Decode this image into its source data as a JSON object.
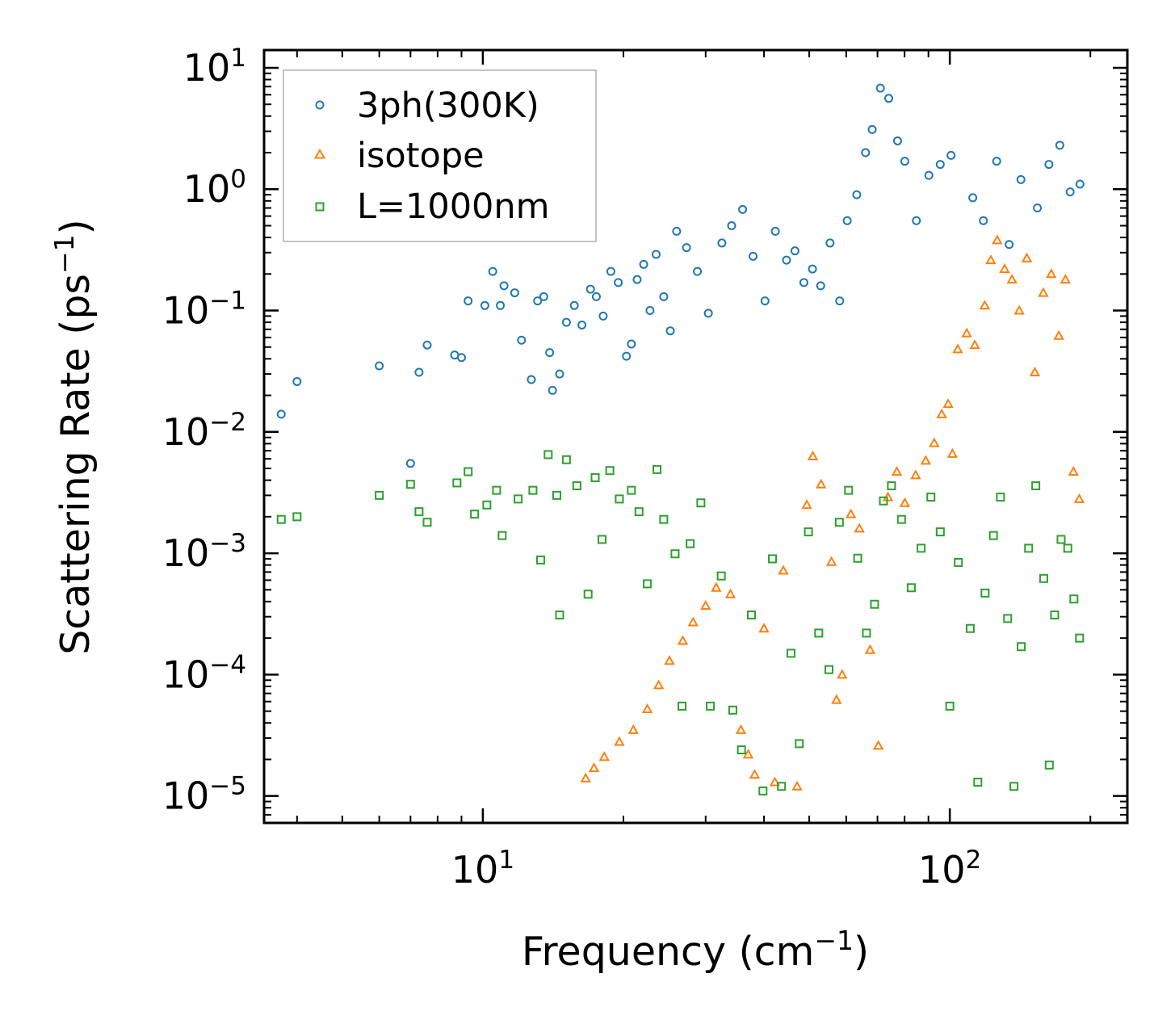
{
  "chart_data": {
    "type": "scatter",
    "title": "",
    "xlabel": "Frequency (cm",
    "xlabel_sup": "−1",
    "xlabel_end": ")",
    "ylabel": "Scattering Rate (ps",
    "ylabel_sup": "−1",
    "ylabel_end": ")",
    "xscale": "log",
    "yscale": "log",
    "xlim": [
      3.4,
      240
    ],
    "ylim": [
      6e-06,
      14
    ],
    "xticks": [
      {
        "value": 10,
        "base": "10",
        "exp": "1"
      },
      {
        "value": 100,
        "base": "10",
        "exp": "2"
      }
    ],
    "yticks": [
      {
        "value": 10,
        "base": "10",
        "exp": "1"
      },
      {
        "value": 1,
        "base": "10",
        "exp": "0"
      },
      {
        "value": 0.1,
        "base": "10",
        "exp": "−1"
      },
      {
        "value": 0.01,
        "base": "10",
        "exp": "−2"
      },
      {
        "value": 0.001,
        "base": "10",
        "exp": "−3"
      },
      {
        "value": 0.0001,
        "base": "10",
        "exp": "−4"
      },
      {
        "value": 1e-05,
        "base": "10",
        "exp": "−5"
      }
    ],
    "legend_position": "top-left",
    "series": [
      {
        "name": "3ph(300K)",
        "marker": "circle",
        "color": "#1f77b4",
        "points": [
          [
            3.7,
            0.014
          ],
          [
            4.0,
            0.026
          ],
          [
            6.0,
            0.035
          ],
          [
            7.0,
            0.0055
          ],
          [
            7.3,
            0.031
          ],
          [
            7.6,
            0.052
          ],
          [
            8.7,
            0.043
          ],
          [
            9.0,
            0.041
          ],
          [
            9.3,
            0.12
          ],
          [
            10.1,
            0.11
          ],
          [
            10.5,
            0.21
          ],
          [
            11.1,
            0.16
          ],
          [
            11.7,
            0.14
          ],
          [
            10.9,
            0.11
          ],
          [
            12.1,
            0.057
          ],
          [
            12.7,
            0.027
          ],
          [
            13.1,
            0.12
          ],
          [
            13.5,
            0.13
          ],
          [
            13.9,
            0.045
          ],
          [
            14.1,
            0.022
          ],
          [
            14.6,
            0.03
          ],
          [
            15.1,
            0.08
          ],
          [
            15.7,
            0.11
          ],
          [
            16.3,
            0.076
          ],
          [
            17.0,
            0.15
          ],
          [
            17.5,
            0.13
          ],
          [
            18.1,
            0.09
          ],
          [
            18.8,
            0.21
          ],
          [
            19.5,
            0.17
          ],
          [
            20.3,
            0.042
          ],
          [
            20.8,
            0.053
          ],
          [
            21.4,
            0.18
          ],
          [
            22.1,
            0.24
          ],
          [
            22.8,
            0.1
          ],
          [
            23.5,
            0.29
          ],
          [
            24.4,
            0.13
          ],
          [
            25.2,
            0.068
          ],
          [
            26.0,
            0.45
          ],
          [
            27.3,
            0.33
          ],
          [
            28.8,
            0.21
          ],
          [
            30.4,
            0.095
          ],
          [
            32.5,
            0.36
          ],
          [
            34.1,
            0.5
          ],
          [
            36.0,
            0.68
          ],
          [
            37.9,
            0.28
          ],
          [
            40.2,
            0.12
          ],
          [
            42.3,
            0.45
          ],
          [
            44.7,
            0.26
          ],
          [
            46.6,
            0.31
          ],
          [
            48.7,
            0.17
          ],
          [
            50.8,
            0.22
          ],
          [
            52.9,
            0.16
          ],
          [
            55.4,
            0.36
          ],
          [
            58.1,
            0.12
          ],
          [
            60.3,
            0.55
          ],
          [
            63.2,
            0.9
          ],
          [
            66.0,
            2.0
          ],
          [
            68.2,
            3.1
          ],
          [
            71.0,
            6.8
          ],
          [
            74.0,
            5.6
          ],
          [
            77.3,
            2.5
          ],
          [
            80.1,
            1.7
          ],
          [
            84.8,
            0.55
          ],
          [
            90.2,
            1.3
          ],
          [
            95.4,
            1.6
          ],
          [
            100.6,
            1.9
          ],
          [
            112.0,
            0.85
          ],
          [
            118.0,
            0.55
          ],
          [
            126.0,
            1.7
          ],
          [
            134.0,
            0.35
          ],
          [
            142.0,
            1.2
          ],
          [
            154.0,
            0.7
          ],
          [
            163.0,
            1.6
          ],
          [
            172.0,
            2.3
          ],
          [
            181.0,
            0.95
          ],
          [
            190.0,
            1.1
          ]
        ]
      },
      {
        "name": "isotope",
        "marker": "triangle",
        "color": "#ff7f0e",
        "points": [
          [
            16.6,
            1.4e-05
          ],
          [
            17.3,
            1.7e-05
          ],
          [
            18.2,
            2.1e-05
          ],
          [
            19.6,
            2.8e-05
          ],
          [
            21.0,
            3.5e-05
          ],
          [
            22.5,
            5.2e-05
          ],
          [
            23.8,
            8.2e-05
          ],
          [
            25.1,
            0.00013
          ],
          [
            26.8,
            0.00019
          ],
          [
            28.2,
            0.00027
          ],
          [
            30.0,
            0.00037
          ],
          [
            31.6,
            0.00052
          ],
          [
            33.9,
            0.00046
          ],
          [
            35.7,
            3.5e-05
          ],
          [
            37.0,
            2.2e-05
          ],
          [
            38.2,
            1.5e-05
          ],
          [
            40.0,
            0.00024
          ],
          [
            42.2,
            1.3e-05
          ],
          [
            44.0,
            0.00072
          ],
          [
            47.1,
            1.2e-05
          ],
          [
            49.4,
            0.0025
          ],
          [
            50.9,
            0.0063
          ],
          [
            53.0,
            0.0037
          ],
          [
            55.8,
            0.00085
          ],
          [
            57.2,
            6.2e-05
          ],
          [
            58.8,
            0.0001
          ],
          [
            61.4,
            0.0021
          ],
          [
            64.0,
            0.0016
          ],
          [
            67.5,
            0.00016
          ],
          [
            70.3,
            2.6e-05
          ],
          [
            73.7,
            0.0029
          ],
          [
            77.0,
            0.0047
          ],
          [
            80.1,
            0.0026
          ],
          [
            84.5,
            0.0044
          ],
          [
            88.8,
            0.0058
          ],
          [
            92.6,
            0.0081
          ],
          [
            96.1,
            0.014
          ],
          [
            99.2,
            0.017
          ],
          [
            101.3,
            0.0066
          ],
          [
            104.0,
            0.048
          ],
          [
            108.7,
            0.065
          ],
          [
            113.1,
            0.052
          ],
          [
            118.8,
            0.11
          ],
          [
            122.4,
            0.26
          ],
          [
            126.3,
            0.38
          ],
          [
            131.0,
            0.22
          ],
          [
            135.9,
            0.18
          ],
          [
            140.8,
            0.1
          ],
          [
            146.2,
            0.27
          ],
          [
            152.1,
            0.031
          ],
          [
            158.6,
            0.14
          ],
          [
            164.9,
            0.2
          ],
          [
            171.2,
            0.062
          ],
          [
            176.8,
            0.18
          ],
          [
            184.0,
            0.0047
          ],
          [
            189.3,
            0.0028
          ]
        ]
      },
      {
        "name": "L=1000nm",
        "marker": "square",
        "color": "#2ca02c",
        "points": [
          [
            3.7,
            0.0019
          ],
          [
            4.0,
            0.002
          ],
          [
            6.0,
            0.003
          ],
          [
            7.0,
            0.0037
          ],
          [
            7.3,
            0.0022
          ],
          [
            7.6,
            0.0018
          ],
          [
            8.8,
            0.0038
          ],
          [
            9.3,
            0.0047
          ],
          [
            9.6,
            0.0021
          ],
          [
            10.2,
            0.0025
          ],
          [
            10.7,
            0.0033
          ],
          [
            11.0,
            0.0014
          ],
          [
            11.9,
            0.0028
          ],
          [
            12.8,
            0.0033
          ],
          [
            13.3,
            0.00088
          ],
          [
            13.8,
            0.0065
          ],
          [
            14.4,
            0.003
          ],
          [
            14.6,
            0.00031
          ],
          [
            15.1,
            0.0059
          ],
          [
            15.9,
            0.0036
          ],
          [
            16.8,
            0.00046
          ],
          [
            17.4,
            0.0042
          ],
          [
            18.0,
            0.0013
          ],
          [
            18.7,
            0.0048
          ],
          [
            19.6,
            0.0028
          ],
          [
            20.8,
            0.0033
          ],
          [
            21.6,
            0.0022
          ],
          [
            22.5,
            0.00056
          ],
          [
            23.6,
            0.0049
          ],
          [
            24.4,
            0.0019
          ],
          [
            25.8,
            0.00099
          ],
          [
            26.7,
            5.5e-05
          ],
          [
            27.8,
            0.0012
          ],
          [
            29.3,
            0.0026
          ],
          [
            30.7,
            5.5e-05
          ],
          [
            32.4,
            0.00065
          ],
          [
            34.3,
            5.1e-05
          ],
          [
            35.8,
            2.4e-05
          ],
          [
            37.6,
            0.00031
          ],
          [
            39.8,
            1.1e-05
          ],
          [
            41.7,
            0.0009
          ],
          [
            43.6,
            1.2e-05
          ],
          [
            45.7,
            0.00015
          ],
          [
            47.6,
            2.7e-05
          ],
          [
            49.8,
            0.0015
          ],
          [
            52.4,
            0.00022
          ],
          [
            55.1,
            0.00011
          ],
          [
            58.0,
            0.0018
          ],
          [
            60.7,
            0.0033
          ],
          [
            63.5,
            0.00091
          ],
          [
            66.3,
            0.00022
          ],
          [
            69.0,
            0.00038
          ],
          [
            72.1,
            0.0027
          ],
          [
            75.0,
            0.0036
          ],
          [
            78.8,
            0.0019
          ],
          [
            82.7,
            0.00052
          ],
          [
            86.8,
            0.0011
          ],
          [
            91.1,
            0.0029
          ],
          [
            95.4,
            0.0015
          ],
          [
            100.0,
            5.5e-05
          ],
          [
            104.3,
            0.00084
          ],
          [
            110.6,
            0.00024
          ],
          [
            114.8,
            1.3e-05
          ],
          [
            119.0,
            0.00047
          ],
          [
            124.0,
            0.0014
          ],
          [
            128.4,
            0.0029
          ],
          [
            133.0,
            0.00029
          ],
          [
            137.2,
            1.2e-05
          ],
          [
            142.2,
            0.00017
          ],
          [
            147.5,
            0.0011
          ],
          [
            152.8,
            0.0036
          ],
          [
            158.9,
            0.00062
          ],
          [
            163.3,
            1.8e-05
          ],
          [
            167.7,
            0.00031
          ],
          [
            173.1,
            0.0013
          ],
          [
            178.9,
            0.0011
          ],
          [
            184.4,
            0.00042
          ],
          [
            189.6,
            0.0002
          ]
        ]
      }
    ]
  }
}
